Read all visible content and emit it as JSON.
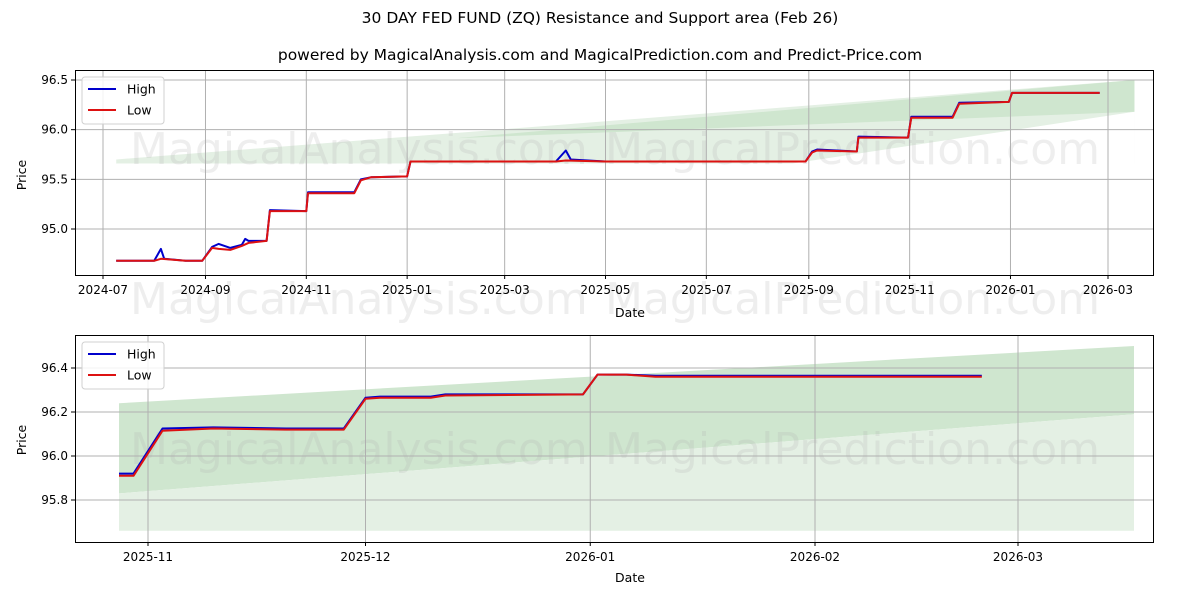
{
  "title": "30 DAY FED FUND (ZQ) Resistance and Support area (Feb 26)",
  "subtitle": "powered by MagicalAnalysis.com and MagicalPrediction.com and Predict-Price.com",
  "watermarks": [
    "MagicalAnalysis.com",
    "MagicalPrediction.com"
  ],
  "colors": {
    "high": "#0000cc",
    "low": "#dd1111",
    "band_dark": "#cfe6cf",
    "band_light": "#e4f0e4",
    "grid": "#b0b0b0"
  },
  "chart_data": [
    {
      "type": "line",
      "title": "",
      "xlabel": "Date",
      "ylabel": "Price",
      "ylim": [
        94.55,
        96.57
      ],
      "x_ticks": [
        "2024-07",
        "2024-09",
        "2024-11",
        "2025-01",
        "2025-03",
        "2025-05",
        "2025-07",
        "2025-09",
        "2025-11",
        "2026-01",
        "2026-03"
      ],
      "y_ticks": [
        "95.0",
        "95.5",
        "96.0",
        "96.5"
      ],
      "grid": true,
      "legend": {
        "position": "upper left",
        "entries": [
          "High",
          "Low"
        ]
      },
      "series": [
        {
          "name": "High",
          "color": "#0000cc",
          "points": [
            [
              "2024-07-09",
              94.68
            ],
            [
              "2024-08-01",
              94.68
            ],
            [
              "2024-08-05",
              94.8
            ],
            [
              "2024-08-07",
              94.7
            ],
            [
              "2024-08-20",
              94.68
            ],
            [
              "2024-08-30",
              94.68
            ],
            [
              "2024-09-05",
              94.82
            ],
            [
              "2024-09-09",
              94.85
            ],
            [
              "2024-09-16",
              94.81
            ],
            [
              "2024-09-23",
              94.84
            ],
            [
              "2024-09-25",
              94.9
            ],
            [
              "2024-09-27",
              94.88
            ],
            [
              "2024-10-08",
              94.88
            ],
            [
              "2024-10-10",
              95.19
            ],
            [
              "2024-11-01",
              95.18
            ],
            [
              "2024-11-02",
              95.37
            ],
            [
              "2024-11-30",
              95.37
            ],
            [
              "2024-12-04",
              95.5
            ],
            [
              "2024-12-10",
              95.52
            ],
            [
              "2025-01-01",
              95.53
            ],
            [
              "2025-01-03",
              95.68
            ],
            [
              "2025-04-01",
              95.68
            ],
            [
              "2025-04-07",
              95.79
            ],
            [
              "2025-04-10",
              95.7
            ],
            [
              "2025-05-01",
              95.68
            ],
            [
              "2025-08-30",
              95.68
            ],
            [
              "2025-09-03",
              95.78
            ],
            [
              "2025-09-06",
              95.8
            ],
            [
              "2025-09-30",
              95.78
            ],
            [
              "2025-10-01",
              95.93
            ],
            [
              "2025-10-31",
              95.92
            ],
            [
              "2025-11-02",
              96.13
            ],
            [
              "2025-11-27",
              96.13
            ],
            [
              "2025-12-01",
              96.27
            ],
            [
              "2025-12-31",
              96.28
            ],
            [
              "2026-01-02",
              96.37
            ],
            [
              "2026-02-24",
              96.37
            ]
          ]
        },
        {
          "name": "Low",
          "color": "#dd1111",
          "points": [
            [
              "2024-07-09",
              94.68
            ],
            [
              "2024-08-01",
              94.68
            ],
            [
              "2024-08-05",
              94.7
            ],
            [
              "2024-08-20",
              94.68
            ],
            [
              "2024-08-30",
              94.68
            ],
            [
              "2024-09-05",
              94.81
            ],
            [
              "2024-09-09",
              94.8
            ],
            [
              "2024-09-16",
              94.79
            ],
            [
              "2024-09-23",
              94.83
            ],
            [
              "2024-09-27",
              94.86
            ],
            [
              "2024-10-08",
              94.88
            ],
            [
              "2024-10-10",
              95.18
            ],
            [
              "2024-11-01",
              95.18
            ],
            [
              "2024-11-02",
              95.36
            ],
            [
              "2024-11-30",
              95.36
            ],
            [
              "2024-12-04",
              95.49
            ],
            [
              "2024-12-10",
              95.52
            ],
            [
              "2025-01-01",
              95.53
            ],
            [
              "2025-01-03",
              95.68
            ],
            [
              "2025-04-01",
              95.68
            ],
            [
              "2025-04-07",
              95.69
            ],
            [
              "2025-05-01",
              95.68
            ],
            [
              "2025-08-30",
              95.68
            ],
            [
              "2025-09-03",
              95.77
            ],
            [
              "2025-09-06",
              95.79
            ],
            [
              "2025-09-30",
              95.78
            ],
            [
              "2025-10-01",
              95.92
            ],
            [
              "2025-10-31",
              95.92
            ],
            [
              "2025-11-02",
              96.12
            ],
            [
              "2025-11-27",
              96.12
            ],
            [
              "2025-12-01",
              96.26
            ],
            [
              "2025-12-31",
              96.28
            ],
            [
              "2026-01-02",
              96.37
            ],
            [
              "2026-02-24",
              96.37
            ]
          ]
        }
      ],
      "bands": [
        {
          "name": "support-area",
          "x": [
            "2024-07-09",
            "2026-03-17"
          ],
          "upper": [
            95.7,
            96.5
          ],
          "lower_start": 94.63,
          "lower_end": 96.18,
          "floor": 95.66
        }
      ]
    },
    {
      "type": "line",
      "title": "",
      "xlabel": "Date",
      "ylabel": "Price",
      "ylim": [
        95.62,
        96.55
      ],
      "x_ticks": [
        "2025-11",
        "2025-12",
        "2026-01",
        "2026-02",
        "2026-03"
      ],
      "y_ticks": [
        "95.8",
        "96.0",
        "96.2",
        "96.4"
      ],
      "grid": true,
      "legend": {
        "position": "upper left",
        "entries": [
          "High",
          "Low"
        ]
      },
      "series": [
        {
          "name": "High",
          "color": "#0000cc",
          "points": [
            [
              "2025-10-28",
              95.92
            ],
            [
              "2025-10-30",
              95.92
            ],
            [
              "2025-11-03",
              96.125
            ],
            [
              "2025-11-10",
              96.13
            ],
            [
              "2025-11-20",
              96.125
            ],
            [
              "2025-11-28",
              96.125
            ],
            [
              "2025-12-01",
              96.265
            ],
            [
              "2025-12-03",
              96.27
            ],
            [
              "2025-12-10",
              96.27
            ],
            [
              "2025-12-12",
              96.28
            ],
            [
              "2025-12-31",
              96.28
            ],
            [
              "2026-01-02",
              96.37
            ],
            [
              "2026-01-06",
              96.37
            ],
            [
              "2026-01-10",
              96.365
            ],
            [
              "2026-02-24",
              96.365
            ]
          ]
        },
        {
          "name": "Low",
          "color": "#dd1111",
          "points": [
            [
              "2025-10-28",
              95.91
            ],
            [
              "2025-10-30",
              95.91
            ],
            [
              "2025-11-03",
              96.115
            ],
            [
              "2025-11-10",
              96.125
            ],
            [
              "2025-11-20",
              96.12
            ],
            [
              "2025-11-28",
              96.12
            ],
            [
              "2025-12-01",
              96.26
            ],
            [
              "2025-12-03",
              96.265
            ],
            [
              "2025-12-10",
              96.265
            ],
            [
              "2025-12-12",
              96.275
            ],
            [
              "2025-12-31",
              96.28
            ],
            [
              "2026-01-02",
              96.37
            ],
            [
              "2026-01-06",
              96.37
            ],
            [
              "2026-01-10",
              96.36
            ],
            [
              "2026-02-24",
              96.36
            ]
          ]
        }
      ],
      "bands": [
        {
          "name": "resistance-band",
          "x": [
            "2025-10-28",
            "2026-03-17"
          ],
          "upper": [
            96.24,
            96.5
          ],
          "lower": [
            95.83,
            96.19
          ]
        },
        {
          "name": "support-band",
          "x": [
            "2025-10-28",
            "2026-03-17"
          ],
          "upper": [
            95.83,
            96.19
          ],
          "lower": [
            95.66,
            95.66
          ]
        }
      ]
    }
  ]
}
